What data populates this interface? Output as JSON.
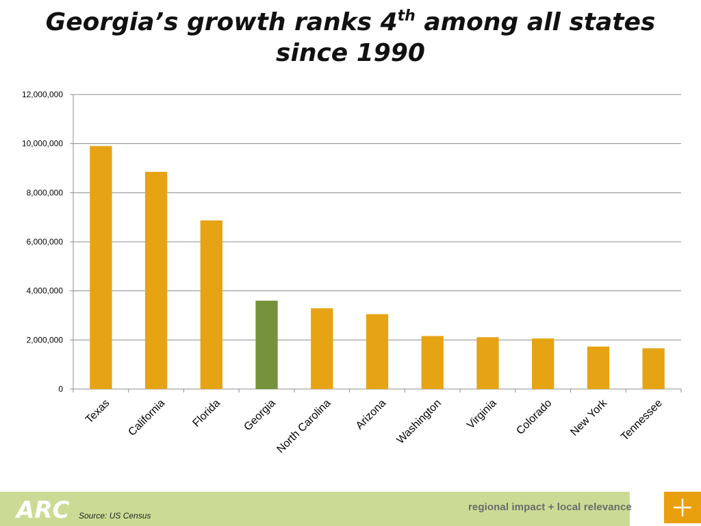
{
  "slide": {
    "title_part1": "Georgia’s growth ranks 4",
    "title_sup": "th",
    "title_part2": " among all states",
    "title_line2": "since 1990"
  },
  "footer": {
    "logo_text": "ARC",
    "source": "Source: US Census",
    "tagline": "regional impact + local relevance",
    "plus_icon": "plus-icon"
  },
  "colors": {
    "bar_default": "#e6a314",
    "bar_highlight": "#76923c",
    "gridline": "#8c8c8c",
    "footer_band": "#cbdb95",
    "accent_box": "#e8a00f"
  },
  "chart_data": {
    "type": "bar",
    "title": "Georgia’s growth ranks 4th among all states since 1990",
    "xlabel": "",
    "ylabel": "",
    "categories": [
      "Texas",
      "California",
      "Florida",
      "Georgia",
      "North Carolina",
      "Arizona",
      "Washington",
      "Virginia",
      "Colorado",
      "New York",
      "Tennessee"
    ],
    "values": [
      9900000,
      8850000,
      6870000,
      3600000,
      3290000,
      3050000,
      2160000,
      2110000,
      2060000,
      1730000,
      1660000
    ],
    "highlight_category": "Georgia",
    "ylim": [
      0,
      12000000
    ],
    "yticks": [
      0,
      2000000,
      4000000,
      6000000,
      8000000,
      10000000,
      12000000
    ],
    "ytick_labels": [
      "0",
      "2,000,000",
      "4,000,000",
      "6,000,000",
      "8,000,000",
      "10,000,000",
      "12,000,000"
    ],
    "grid": true,
    "legend": "none"
  }
}
